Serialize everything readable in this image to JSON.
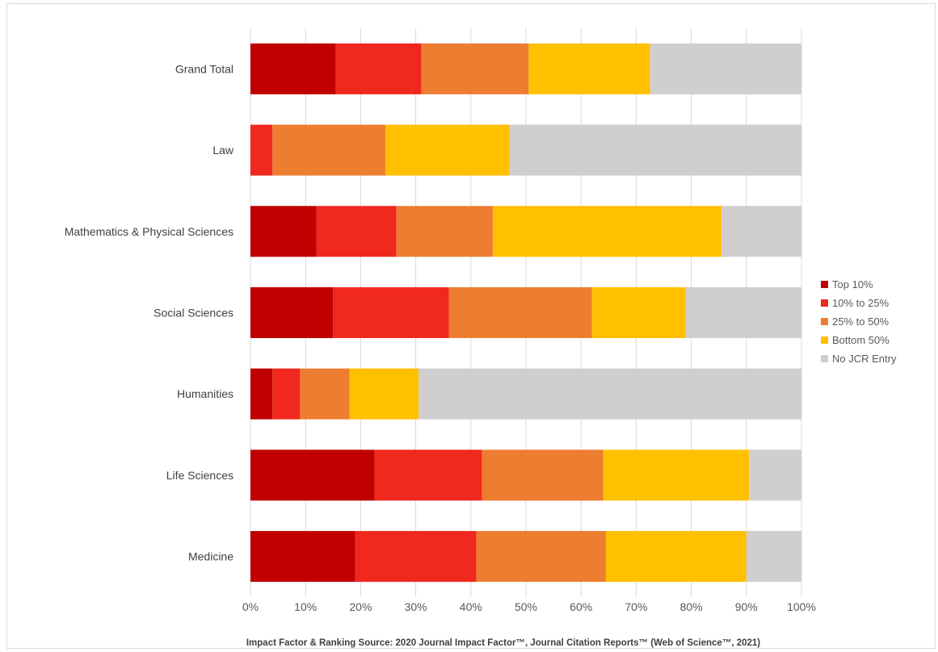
{
  "chart_data": {
    "type": "bar",
    "orientation": "horizontal",
    "stacked": "percent",
    "categories": [
      "Grand Total",
      "Law",
      "Mathematics & Physical Sciences",
      "Social Sciences",
      "Humanities",
      "Life Sciences",
      "Medicine"
    ],
    "series": [
      {
        "name": "Top 10%",
        "color": "#c00000",
        "values": [
          15.5,
          0,
          12,
          15,
          4,
          22.5,
          19
        ]
      },
      {
        "name": "10% to 25%",
        "color": "#f0281e",
        "values": [
          15.5,
          4,
          14.5,
          21,
          5,
          19.5,
          22
        ]
      },
      {
        "name": "25% to 50%",
        "color": "#ed7d31",
        "values": [
          19.5,
          20.5,
          17.5,
          26,
          9,
          22,
          23.5
        ]
      },
      {
        "name": "Bottom 50%",
        "color": "#ffc000",
        "values": [
          22,
          22.5,
          41.5,
          17,
          12.5,
          26.5,
          25.5
        ]
      },
      {
        "name": "No JCR Entry",
        "color": "#d0cece",
        "values": [
          27.5,
          53,
          14.5,
          21,
          69.5,
          9.5,
          10
        ]
      }
    ],
    "x_ticks": [
      "0%",
      "10%",
      "20%",
      "30%",
      "40%",
      "50%",
      "60%",
      "70%",
      "80%",
      "90%",
      "100%"
    ],
    "xlim": [
      0,
      100
    ],
    "grid": true,
    "legend_position": "right",
    "source_note": "Impact Factor & Ranking Source: 2020 Journal Impact Factor™, Journal Citation Reports™ (Web of Science™, 2021)"
  }
}
